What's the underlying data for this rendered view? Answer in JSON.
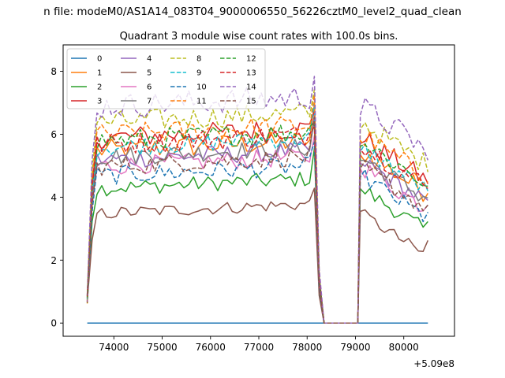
{
  "chart_data": {
    "type": "line",
    "suptitle": "n file: modeM0/AS1A14_083T04_9000006550_56226cztM0_level2_quad_clean",
    "title": "Quadrant 3 module wise count rates with 100.0s bins.",
    "xlabel": "",
    "ylabel": "",
    "offset_label": "+5.09e8",
    "xlim": [
      72950,
      81050
    ],
    "ylim": [
      -0.42,
      8.84
    ],
    "xticks": [
      74000,
      75000,
      76000,
      77000,
      78000,
      79000,
      80000
    ],
    "yticks": [
      0,
      2,
      4,
      6,
      8
    ],
    "grid": false,
    "legend_position": "top-left",
    "legend_ncol": 4,
    "segments": [
      {
        "x_start": 73450,
        "x_end": 78150,
        "dx": 100
      },
      {
        "x_start": 79100,
        "x_end": 80500,
        "dx": 100
      }
    ],
    "gap": [
      78250,
      78350,
      79050
    ],
    "series": [
      {
        "name": "0",
        "color": "#1f77b4",
        "dash": false,
        "level": 0.0,
        "noise": 0.0
      },
      {
        "name": "1",
        "color": "#ff7f0e",
        "dash": false,
        "level": 5.5,
        "noise": 0.35
      },
      {
        "name": "2",
        "color": "#2ca02c",
        "dash": false,
        "level": 4.3,
        "noise": 0.25
      },
      {
        "name": "3",
        "color": "#d62728",
        "dash": false,
        "level": 5.9,
        "noise": 0.35
      },
      {
        "name": "4",
        "color": "#9467bd",
        "dash": false,
        "level": 5.2,
        "noise": 0.3
      },
      {
        "name": "5",
        "color": "#8c564b",
        "dash": false,
        "level": 3.5,
        "noise": 0.2
      },
      {
        "name": "6",
        "color": "#e377c2",
        "dash": false,
        "level": 5.0,
        "noise": 0.3
      },
      {
        "name": "7",
        "color": "#7f7f7f",
        "dash": false,
        "level": 5.3,
        "noise": 0.3
      },
      {
        "name": "8",
        "color": "#bcbd22",
        "dash": true,
        "level": 6.4,
        "noise": 0.35
      },
      {
        "name": "9",
        "color": "#17becf",
        "dash": true,
        "level": 5.6,
        "noise": 0.3
      },
      {
        "name": "10",
        "color": "#1f77b4",
        "dash": true,
        "level": 4.7,
        "noise": 0.3
      },
      {
        "name": "11",
        "color": "#ff7f0e",
        "dash": true,
        "level": 6.0,
        "noise": 0.35
      },
      {
        "name": "12",
        "color": "#2ca02c",
        "dash": true,
        "level": 5.8,
        "noise": 0.35
      },
      {
        "name": "13",
        "color": "#d62728",
        "dash": true,
        "level": 5.7,
        "noise": 0.35
      },
      {
        "name": "14",
        "color": "#9467bd",
        "dash": true,
        "level": 6.9,
        "noise": 0.4
      },
      {
        "name": "15",
        "color": "#8c564b",
        "dash": true,
        "level": 5.0,
        "noise": 0.3
      }
    ]
  }
}
